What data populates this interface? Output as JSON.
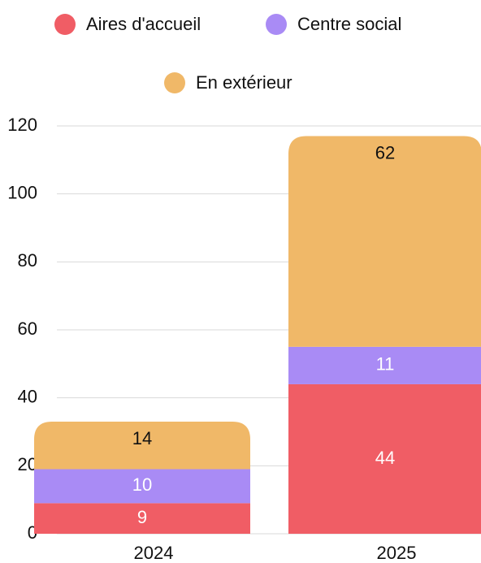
{
  "chart_data": {
    "type": "stacked_bar",
    "categories": [
      "2024",
      "2025"
    ],
    "series": [
      {
        "name": "Aires d'accueil",
        "color": "#f05d65",
        "values": [
          9,
          44
        ]
      },
      {
        "name": "Centre social",
        "color": "#a98bf5",
        "values": [
          10,
          11
        ]
      },
      {
        "name": "En extérieur",
        "color": "#f0b868",
        "values": [
          14,
          62
        ]
      }
    ],
    "ylim": [
      0,
      120
    ],
    "yticks": [
      0,
      20,
      40,
      60,
      80,
      100,
      120
    ],
    "grid": true
  }
}
